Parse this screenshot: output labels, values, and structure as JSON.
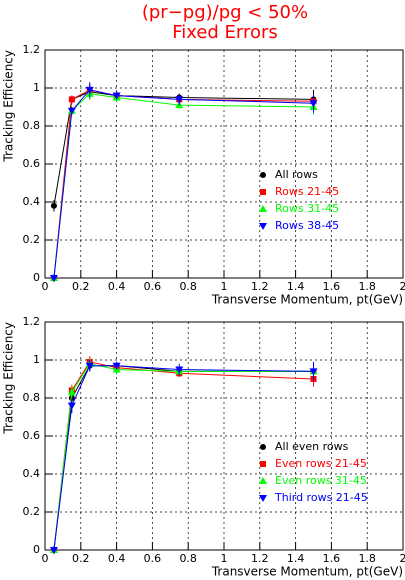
{
  "chart_data": [
    {
      "type": "line",
      "title": "(pr−pg)/pg < 50%",
      "subtitle": "Fixed Errors",
      "y_label": "Tracking Efficiency",
      "x_label": "Transverse Momentum, pt(GeV)",
      "x": [
        0.05,
        0.15,
        0.25,
        0.4,
        0.75,
        1.5
      ],
      "xlim": [
        0,
        2
      ],
      "xticks": [
        0,
        0.2,
        0.4,
        0.6,
        0.8,
        1,
        1.2,
        1.4,
        1.6,
        1.8,
        2
      ],
      "ylim": [
        0,
        1.2
      ],
      "yticks": [
        0,
        0.2,
        0.4,
        0.6,
        0.8,
        1,
        1.2
      ],
      "grid": true,
      "legend": "right",
      "series": [
        {
          "name": "All rows",
          "color": "#000000",
          "marker": "circle",
          "values": [
            0.38,
            0.94,
            0.98,
            0.96,
            0.95,
            0.94
          ],
          "errors": [
            0.03,
            0.02,
            0.04,
            0.02,
            0.02,
            0.05
          ]
        },
        {
          "name": "Rows 21-45",
          "color": "#ff0000",
          "marker": "square",
          "values": [
            0,
            0.94,
            0.99,
            0.96,
            0.94,
            0.93
          ],
          "errors": [
            0.02,
            0.02,
            0.03,
            0.02,
            0.02,
            0.04
          ]
        },
        {
          "name": "Rows 31-45",
          "color": "#00ff00",
          "marker": "triangle-up",
          "values": [
            0,
            0.88,
            0.97,
            0.95,
            0.91,
            0.9
          ],
          "errors": [
            0.02,
            0.02,
            0.03,
            0.02,
            0.02,
            0.04
          ]
        },
        {
          "name": "Rows 38-45",
          "color": "#0000ff",
          "marker": "triangle-down",
          "values": [
            0,
            0.88,
            0.99,
            0.96,
            0.94,
            0.92
          ],
          "errors": [
            0.02,
            0.02,
            0.04,
            0.02,
            0.03,
            0.05
          ]
        }
      ]
    },
    {
      "type": "line",
      "y_label": "Tracking Efficiency",
      "x_label": "Transverse Momentum, pt(GeV)",
      "x": [
        0.05,
        0.15,
        0.25,
        0.4,
        0.75,
        1.5
      ],
      "xlim": [
        0,
        2
      ],
      "xticks": [
        0,
        0.2,
        0.4,
        0.6,
        0.8,
        1,
        1.2,
        1.4,
        1.6,
        1.8,
        2
      ],
      "ylim": [
        0,
        1.2
      ],
      "yticks": [
        0,
        0.2,
        0.4,
        0.6,
        0.8,
        1,
        1.2
      ],
      "grid": true,
      "legend": "right",
      "series": [
        {
          "name": "All even rows",
          "color": "#000000",
          "marker": "circle",
          "values": [
            0,
            0.8,
            0.97,
            0.97,
            0.94,
            0.94
          ],
          "errors": [
            0.02,
            0.03,
            0.03,
            0.02,
            0.02,
            0.04
          ]
        },
        {
          "name": "Even rows 21-45",
          "color": "#ff0000",
          "marker": "square",
          "values": [
            0,
            0.84,
            0.99,
            0.96,
            0.93,
            0.9
          ],
          "errors": [
            0.02,
            0.03,
            0.03,
            0.02,
            0.02,
            0.04
          ]
        },
        {
          "name": "Even rows 31-45",
          "color": "#00ff00",
          "marker": "triangle-up",
          "values": [
            0,
            0.83,
            0.98,
            0.95,
            0.94,
            0.94
          ],
          "errors": [
            0.02,
            0.03,
            0.03,
            0.02,
            0.02,
            0.04
          ]
        },
        {
          "name": "Third rows 21-45",
          "color": "#0000ff",
          "marker": "triangle-down",
          "values": [
            0,
            0.76,
            0.97,
            0.97,
            0.95,
            0.94
          ],
          "errors": [
            0.02,
            0.04,
            0.03,
            0.02,
            0.03,
            0.05
          ]
        }
      ]
    }
  ]
}
